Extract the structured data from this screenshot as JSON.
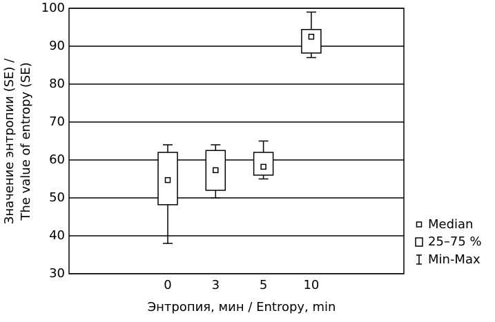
{
  "chart_data": {
    "type": "box",
    "xlabel": "Энтропия, мин / Entropy, min",
    "ylabel": [
      "Значение энтропии (SE) /",
      "The value of entropy (SE)"
    ],
    "categories": [
      "0",
      "3",
      "5",
      "10"
    ],
    "min": [
      38,
      50,
      55,
      87
    ],
    "q1": [
      48.2,
      52,
      56,
      88.2
    ],
    "median": [
      54.7,
      57.3,
      58.2,
      92.5
    ],
    "q3": [
      62,
      62.5,
      62,
      94.4
    ],
    "max": [
      64,
      64,
      65,
      99
    ],
    "legend": {
      "median": "Median",
      "box": "25–75 %",
      "whisker": "Min-Max"
    },
    "ylim": [
      30,
      100
    ],
    "yticks": [
      30,
      40,
      50,
      60,
      70,
      80,
      90,
      100
    ],
    "grid": true,
    "color": "#000000"
  }
}
